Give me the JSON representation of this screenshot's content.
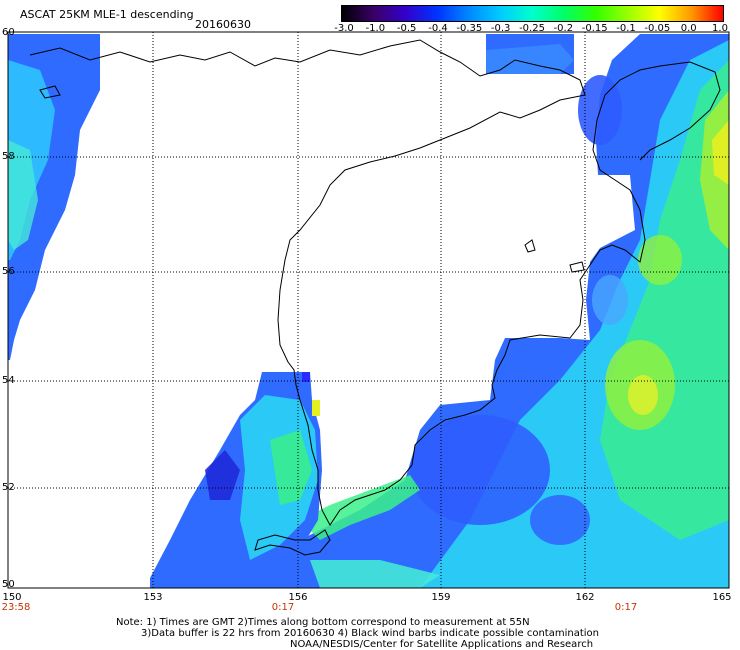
{
  "title": "ASCAT 25KM MLE-1 descending",
  "date": "20160630",
  "colorbar": {
    "labels": [
      "-3.0",
      "-1.0",
      "-0.5",
      "-0.4",
      "-0.35",
      "-0.3",
      "-0.25",
      "-0.2",
      "-0.15",
      "-0.1",
      "-0.05",
      "0.0",
      "1.0"
    ],
    "colors": [
      "#000000",
      "#3a0066",
      "#3300cc",
      "#0033ff",
      "#0088ff",
      "#00ccff",
      "#00ffcc",
      "#00ff66",
      "#33ff00",
      "#99ff00",
      "#ffff00",
      "#ff9900",
      "#ff0000"
    ]
  },
  "axes": {
    "lon_labels": [
      "150",
      "153",
      "156",
      "159",
      "162",
      "165"
    ],
    "lat_labels": [
      "60",
      "58",
      "56",
      "54",
      "52",
      "50"
    ],
    "times": [
      "23:58",
      "0:17",
      "0:17"
    ]
  },
  "notes": [
    "Note: 1) Times are GMT 2)Times along bottom correspond to measurement at 55N",
    "3)Data buffer is 22 hrs from 20160630 4) Black wind barbs indicate possible contamination",
    "NOAA/NESDIS/Center for Satellite Applications and Research"
  ]
}
